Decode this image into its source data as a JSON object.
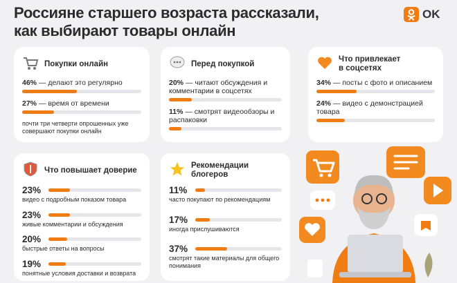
{
  "header": {
    "title_lines": [
      "Россияне старшего возраста рассказали,",
      "как выбирают товары онлайн"
    ],
    "logo": "OK"
  },
  "cards": [
    {
      "title": "Покупки онлайн",
      "items": [
        {
          "value": 46,
          "value_label": "46%",
          "text": "— делают это регулярно"
        },
        {
          "value": 27,
          "value_label": "27%",
          "text": "— время от времени"
        }
      ],
      "note": "почти три четверти опрошенных уже совершают покупки онлайн"
    },
    {
      "title": "Перед покупкой",
      "items": [
        {
          "value": 20,
          "value_label": "20%",
          "text": "— читают обсуждения и комментарии в соцсетях"
        },
        {
          "value": 11,
          "value_label": "11%",
          "text": "— смотрят видеообзоры и распаковки"
        }
      ]
    },
    {
      "title": "Что привлекает в соцсетях",
      "items": [
        {
          "value": 34,
          "value_label": "34%",
          "text": "— посты с фото и описанием"
        },
        {
          "value": 24,
          "value_label": "24%",
          "text": "— видео с демонстрацией товара"
        }
      ]
    },
    {
      "title": "Что повышает доверие",
      "items": [
        {
          "value": 23,
          "value_label": "23%",
          "text": "видео с подробным показом товара"
        },
        {
          "value": 23,
          "value_label": "23%",
          "text": "живые комментарии и обсуждения"
        },
        {
          "value": 20,
          "value_label": "20%",
          "text": "быстрые ответы на вопросы"
        },
        {
          "value": 19,
          "value_label": "19%",
          "text": "понятные условия доставки и возврата"
        }
      ]
    },
    {
      "title": "Рекомендации блогеров",
      "items": [
        {
          "value": 11,
          "value_label": "11%",
          "text": "часто покупают по рекомендациям"
        },
        {
          "value": 17,
          "value_label": "17%",
          "text": "иногда прислушиваются"
        },
        {
          "value": 37,
          "value_label": "37%",
          "text": "смотрят такие материалы для общего понимания"
        }
      ]
    }
  ]
}
